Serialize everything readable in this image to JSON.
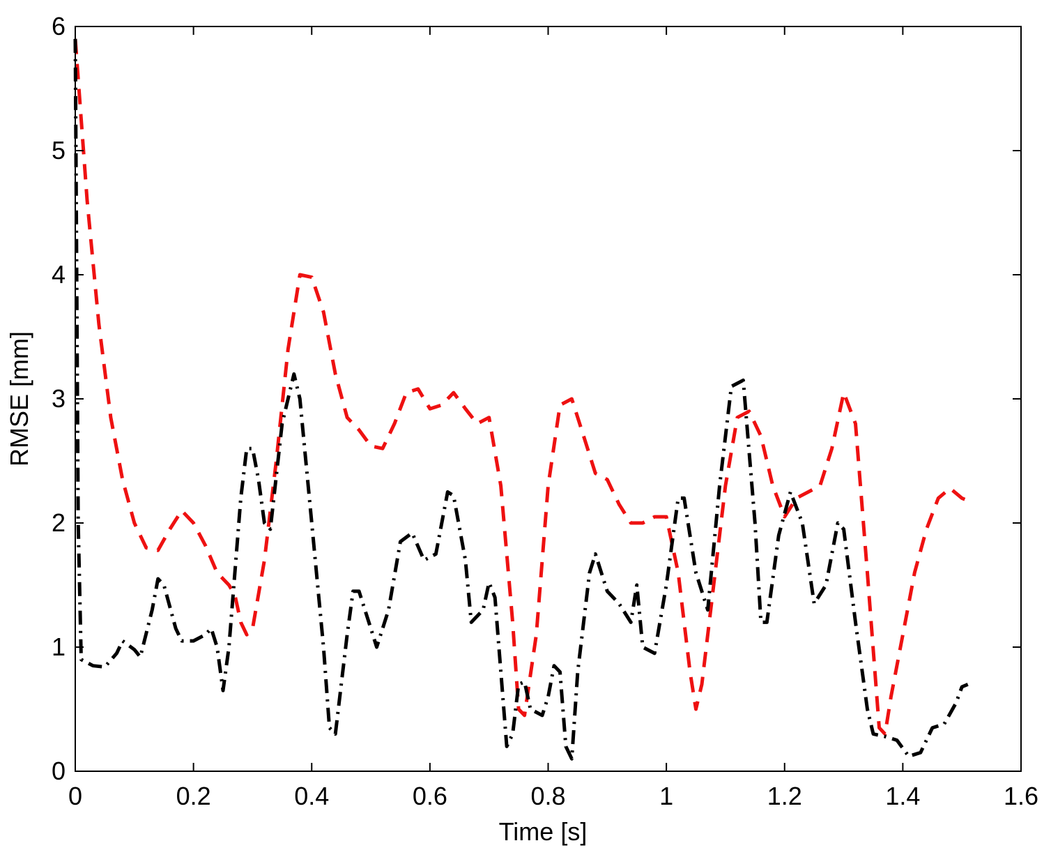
{
  "chart_data": {
    "type": "line",
    "title": "",
    "xlabel": "Time [s]",
    "ylabel": "RMSE [mm]",
    "xlim": [
      0,
      1.6
    ],
    "ylim": [
      0,
      6
    ],
    "x_ticks": [
      0,
      0.2,
      0.4,
      0.6,
      0.8,
      1,
      1.2,
      1.4,
      1.6
    ],
    "x_tick_labels": [
      "0",
      "0.2",
      "0.4",
      "0.6",
      "0.8",
      "1",
      "1.2",
      "1.4",
      "1.6"
    ],
    "y_ticks": [
      0,
      1,
      2,
      3,
      4,
      5,
      6
    ],
    "y_tick_labels": [
      "0",
      "1",
      "2",
      "3",
      "4",
      "5",
      "6"
    ],
    "grid": false,
    "legend": null,
    "series": [
      {
        "color": "#ee1111",
        "line_style": "dashed",
        "points": [
          [
            0.0,
            5.9
          ],
          [
            0.02,
            4.6
          ],
          [
            0.04,
            3.6
          ],
          [
            0.06,
            2.85
          ],
          [
            0.08,
            2.35
          ],
          [
            0.1,
            2.0
          ],
          [
            0.12,
            1.8
          ],
          [
            0.14,
            1.78
          ],
          [
            0.16,
            1.95
          ],
          [
            0.18,
            2.1
          ],
          [
            0.2,
            2.0
          ],
          [
            0.22,
            1.82
          ],
          [
            0.24,
            1.6
          ],
          [
            0.26,
            1.5
          ],
          [
            0.27,
            1.42
          ],
          [
            0.28,
            1.2
          ],
          [
            0.29,
            1.1
          ],
          [
            0.3,
            1.15
          ],
          [
            0.32,
            1.7
          ],
          [
            0.34,
            2.5
          ],
          [
            0.36,
            3.4
          ],
          [
            0.38,
            4.0
          ],
          [
            0.4,
            3.98
          ],
          [
            0.42,
            3.7
          ],
          [
            0.44,
            3.2
          ],
          [
            0.46,
            2.85
          ],
          [
            0.48,
            2.75
          ],
          [
            0.5,
            2.62
          ],
          [
            0.52,
            2.6
          ],
          [
            0.54,
            2.8
          ],
          [
            0.56,
            3.05
          ],
          [
            0.58,
            3.08
          ],
          [
            0.6,
            2.92
          ],
          [
            0.62,
            2.95
          ],
          [
            0.64,
            3.05
          ],
          [
            0.66,
            2.92
          ],
          [
            0.68,
            2.8
          ],
          [
            0.7,
            2.85
          ],
          [
            0.72,
            2.3
          ],
          [
            0.74,
            1.2
          ],
          [
            0.75,
            0.5
          ],
          [
            0.76,
            0.45
          ],
          [
            0.78,
            1.1
          ],
          [
            0.8,
            2.3
          ],
          [
            0.82,
            2.95
          ],
          [
            0.84,
            3.0
          ],
          [
            0.86,
            2.7
          ],
          [
            0.88,
            2.4
          ],
          [
            0.9,
            2.35
          ],
          [
            0.92,
            2.15
          ],
          [
            0.94,
            2.0
          ],
          [
            0.96,
            2.0
          ],
          [
            0.98,
            2.05
          ],
          [
            1.0,
            2.05
          ],
          [
            1.02,
            1.6
          ],
          [
            1.04,
            0.8
          ],
          [
            1.05,
            0.5
          ],
          [
            1.06,
            0.7
          ],
          [
            1.08,
            1.5
          ],
          [
            1.1,
            2.3
          ],
          [
            1.12,
            2.85
          ],
          [
            1.14,
            2.9
          ],
          [
            1.16,
            2.7
          ],
          [
            1.18,
            2.3
          ],
          [
            1.2,
            2.05
          ],
          [
            1.22,
            2.2
          ],
          [
            1.24,
            2.25
          ],
          [
            1.26,
            2.3
          ],
          [
            1.28,
            2.6
          ],
          [
            1.3,
            3.05
          ],
          [
            1.32,
            2.8
          ],
          [
            1.34,
            1.6
          ],
          [
            1.36,
            0.35
          ],
          [
            1.37,
            0.3
          ],
          [
            1.38,
            0.6
          ],
          [
            1.4,
            1.1
          ],
          [
            1.42,
            1.6
          ],
          [
            1.44,
            1.95
          ],
          [
            1.46,
            2.2
          ],
          [
            1.48,
            2.28
          ],
          [
            1.5,
            2.2
          ],
          [
            1.51,
            2.18
          ]
        ]
      },
      {
        "color": "#000000",
        "line_style": "dash-dot",
        "points": [
          [
            0.0,
            5.9
          ],
          [
            0.005,
            2.0
          ],
          [
            0.01,
            0.9
          ],
          [
            0.03,
            0.85
          ],
          [
            0.05,
            0.84
          ],
          [
            0.07,
            0.95
          ],
          [
            0.08,
            1.05
          ],
          [
            0.1,
            0.98
          ],
          [
            0.11,
            0.92
          ],
          [
            0.13,
            1.3
          ],
          [
            0.14,
            1.55
          ],
          [
            0.15,
            1.5
          ],
          [
            0.17,
            1.15
          ],
          [
            0.18,
            1.05
          ],
          [
            0.2,
            1.05
          ],
          [
            0.22,
            1.1
          ],
          [
            0.23,
            1.15
          ],
          [
            0.24,
            1.0
          ],
          [
            0.25,
            0.65
          ],
          [
            0.26,
            1.0
          ],
          [
            0.28,
            2.2
          ],
          [
            0.29,
            2.6
          ],
          [
            0.3,
            2.6
          ],
          [
            0.31,
            2.35
          ],
          [
            0.32,
            2.0
          ],
          [
            0.33,
            1.95
          ],
          [
            0.35,
            2.8
          ],
          [
            0.37,
            3.2
          ],
          [
            0.38,
            3.0
          ],
          [
            0.4,
            2.0
          ],
          [
            0.42,
            1.0
          ],
          [
            0.43,
            0.35
          ],
          [
            0.44,
            0.3
          ],
          [
            0.46,
            1.1
          ],
          [
            0.47,
            1.45
          ],
          [
            0.48,
            1.45
          ],
          [
            0.5,
            1.15
          ],
          [
            0.51,
            1.0
          ],
          [
            0.53,
            1.3
          ],
          [
            0.55,
            1.85
          ],
          [
            0.57,
            1.92
          ],
          [
            0.59,
            1.7
          ],
          [
            0.61,
            1.75
          ],
          [
            0.63,
            2.25
          ],
          [
            0.64,
            2.22
          ],
          [
            0.66,
            1.7
          ],
          [
            0.67,
            1.2
          ],
          [
            0.69,
            1.3
          ],
          [
            0.7,
            1.52
          ],
          [
            0.71,
            1.4
          ],
          [
            0.73,
            0.2
          ],
          [
            0.74,
            0.3
          ],
          [
            0.75,
            0.7
          ],
          [
            0.76,
            0.72
          ],
          [
            0.77,
            0.5
          ],
          [
            0.79,
            0.45
          ],
          [
            0.8,
            0.6
          ],
          [
            0.81,
            0.85
          ],
          [
            0.82,
            0.8
          ],
          [
            0.83,
            0.2
          ],
          [
            0.84,
            0.1
          ],
          [
            0.85,
            0.8
          ],
          [
            0.87,
            1.6
          ],
          [
            0.88,
            1.75
          ],
          [
            0.9,
            1.45
          ],
          [
            0.92,
            1.35
          ],
          [
            0.94,
            1.2
          ],
          [
            0.95,
            1.5
          ],
          [
            0.96,
            1.0
          ],
          [
            0.98,
            0.95
          ],
          [
            1.0,
            1.5
          ],
          [
            1.02,
            2.2
          ],
          [
            1.03,
            2.2
          ],
          [
            1.05,
            1.6
          ],
          [
            1.07,
            1.3
          ],
          [
            1.09,
            2.3
          ],
          [
            1.11,
            3.1
          ],
          [
            1.13,
            3.15
          ],
          [
            1.15,
            2.0
          ],
          [
            1.16,
            1.2
          ],
          [
            1.17,
            1.2
          ],
          [
            1.19,
            1.9
          ],
          [
            1.21,
            2.25
          ],
          [
            1.23,
            2.0
          ],
          [
            1.25,
            1.35
          ],
          [
            1.27,
            1.5
          ],
          [
            1.29,
            2.0
          ],
          [
            1.3,
            1.95
          ],
          [
            1.32,
            1.2
          ],
          [
            1.34,
            0.5
          ],
          [
            1.35,
            0.3
          ],
          [
            1.37,
            0.28
          ],
          [
            1.39,
            0.25
          ],
          [
            1.41,
            0.12
          ],
          [
            1.43,
            0.15
          ],
          [
            1.45,
            0.35
          ],
          [
            1.47,
            0.38
          ],
          [
            1.49,
            0.55
          ],
          [
            1.5,
            0.68
          ],
          [
            1.51,
            0.7
          ]
        ]
      }
    ]
  }
}
